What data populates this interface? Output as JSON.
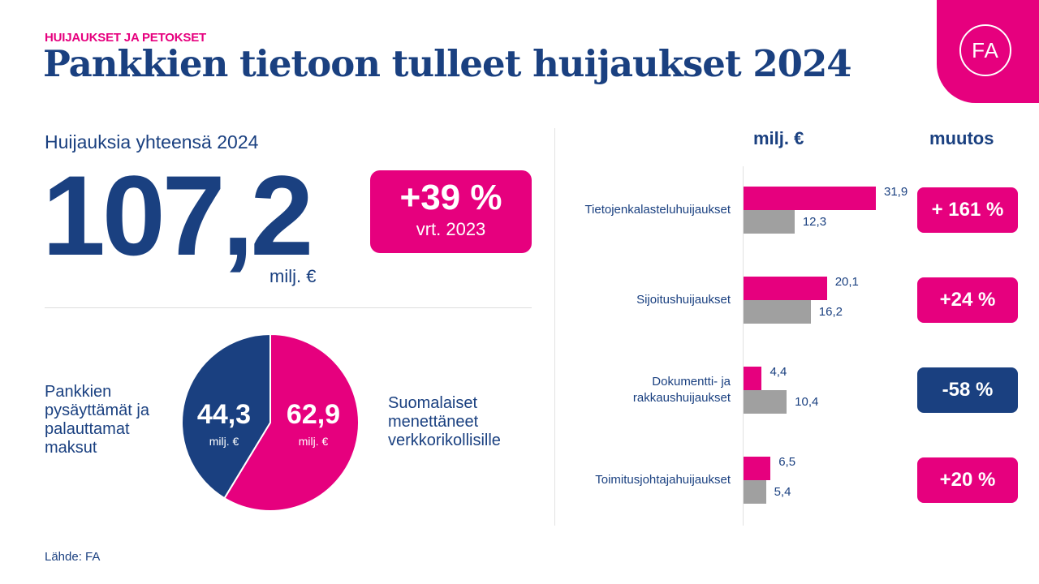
{
  "header": {
    "kicker": "HUIJAUKSET JA PETOKSET",
    "title": "Pankkien tietoon tulleet huijaukset 2024",
    "logo_text": "FA"
  },
  "total": {
    "label": "Huijauksia yhteensä 2024",
    "value": "107,2",
    "unit": "milj. €",
    "change": "+39 %",
    "change_ref": "vrt. 2023"
  },
  "colors": {
    "navy": "#1a4080",
    "pink": "#e6007e",
    "gray": "#a0a0a0"
  },
  "source": "Lähde: FA",
  "chart_data": [
    {
      "type": "pie",
      "slices": [
        {
          "label": "Suomalaiset menettäneet verkkorikollisille",
          "value": 62.9,
          "value_text": "62,9",
          "unit": "milj. €",
          "color": "#e6007e"
        },
        {
          "label": "Pankkien pysäyttämät ja palauttamat maksut",
          "value": 44.3,
          "value_text": "44,3",
          "unit": "milj. €",
          "color": "#1a4080"
        }
      ]
    },
    {
      "type": "bar",
      "orientation": "horizontal",
      "value_header": "milj. €",
      "change_header": "muutos",
      "categories": [
        "Tietojenkalasteluhuijaukset",
        "Sijoitushuijaukset",
        "Dokumentti- ja rakkaushuijaukset",
        "Toimitusjohtajahuijaukset"
      ],
      "series": [
        {
          "values": [
            31.9,
            20.1,
            4.4,
            6.5
          ],
          "labels": [
            "31,9",
            "20,1",
            "4,4",
            "6,5"
          ],
          "color": "#e6007e"
        },
        {
          "values": [
            12.3,
            16.2,
            10.4,
            5.4
          ],
          "labels": [
            "12,3",
            "16,2",
            "10,4",
            "5,4"
          ],
          "color": "#a0a0a0"
        }
      ],
      "changes": [
        "+ 161 %",
        "+24 %",
        "-58 %",
        "+20 %"
      ],
      "change_colors": [
        "#e6007e",
        "#e6007e",
        "#1a4080",
        "#e6007e"
      ]
    }
  ]
}
